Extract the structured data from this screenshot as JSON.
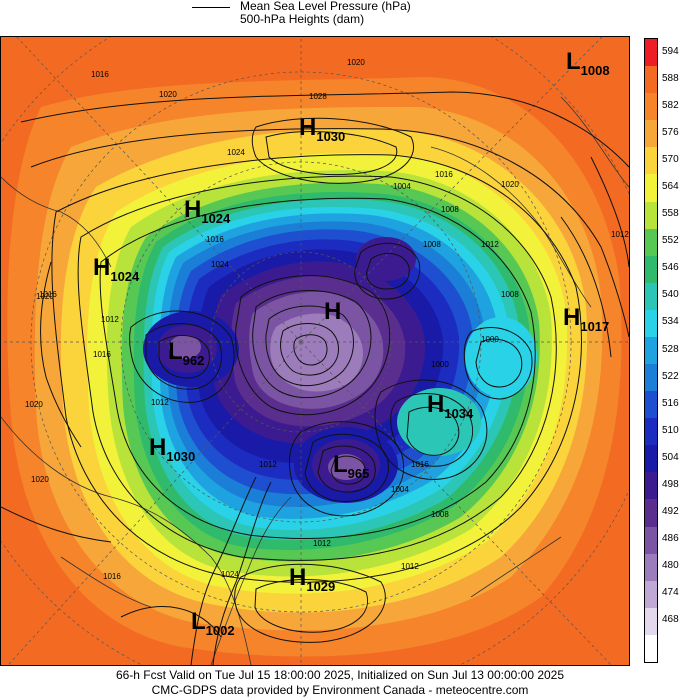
{
  "legend": {
    "line_label": "Mean Sea Level Pressure (hPa)",
    "fill_label": "500-hPa Heights (dam)"
  },
  "colorbar": {
    "levels": [
      {
        "label": "594",
        "color": "#ee1c24"
      },
      {
        "label": "588",
        "color": "#f36b22"
      },
      {
        "label": "582",
        "color": "#f5842a"
      },
      {
        "label": "576",
        "color": "#f7a73a"
      },
      {
        "label": "570",
        "color": "#fbd43c"
      },
      {
        "label": "564",
        "color": "#f2f23a"
      },
      {
        "label": "558",
        "color": "#b8e33a"
      },
      {
        "label": "552",
        "color": "#57c853"
      },
      {
        "label": "546",
        "color": "#2fbb6b"
      },
      {
        "label": "540",
        "color": "#2cc6b6"
      },
      {
        "label": "534",
        "color": "#29d2e6"
      },
      {
        "label": "528",
        "color": "#1fa3e0"
      },
      {
        "label": "522",
        "color": "#1b7fd8"
      },
      {
        "label": "516",
        "color": "#1e4fd0"
      },
      {
        "label": "510",
        "color": "#1c2cc0"
      },
      {
        "label": "504",
        "color": "#1a1aa8"
      },
      {
        "label": "498",
        "color": "#3b1b8f"
      },
      {
        "label": "492",
        "color": "#5a2e8f"
      },
      {
        "label": "486",
        "color": "#7b55a3"
      },
      {
        "label": "480",
        "color": "#9c7cbb"
      },
      {
        "label": "474",
        "color": "#c0a8d5"
      },
      {
        "label": "468",
        "color": "#e3d8ee"
      },
      {
        "label": "",
        "color": "#ffffff"
      }
    ]
  },
  "pressure_centers": [
    {
      "type": "L",
      "value": "1008"
    },
    {
      "type": "H",
      "value": "1030"
    },
    {
      "type": "H",
      "value": "1024"
    },
    {
      "type": "H",
      "value": "1024"
    },
    {
      "type": "H",
      "value": "1017"
    },
    {
      "type": "L",
      "value": "962"
    },
    {
      "type": "H",
      "value": "1034"
    },
    {
      "type": "H",
      "value": "1030"
    },
    {
      "type": "L",
      "value": "965"
    },
    {
      "type": "H",
      "value": "1029"
    },
    {
      "type": "L",
      "value": "1002"
    },
    {
      "type": "H",
      "value": ""
    }
  ],
  "isobar_labels": [
    "1016",
    "1020",
    "1028",
    "1020",
    "1024",
    "1016",
    "1020",
    "1012",
    "1000",
    "1012",
    "1008",
    "1012",
    "1016",
    "1004",
    "1008",
    "1000",
    "1012",
    "1016",
    "1020",
    "1024",
    "1016",
    "1012",
    "1008",
    "1012",
    "1016",
    "1020",
    "1012",
    "1004",
    "1020",
    "1016",
    "1024",
    "1008"
  ],
  "footer": {
    "line1": "66-h Fcst Valid on Tue Jul 15 18:00:00 2025, Initialized on Sun Jul 13 00:00:00 2025",
    "line2": "CMC-GDPS data provided by Environment Canada - meteocentre.com"
  }
}
